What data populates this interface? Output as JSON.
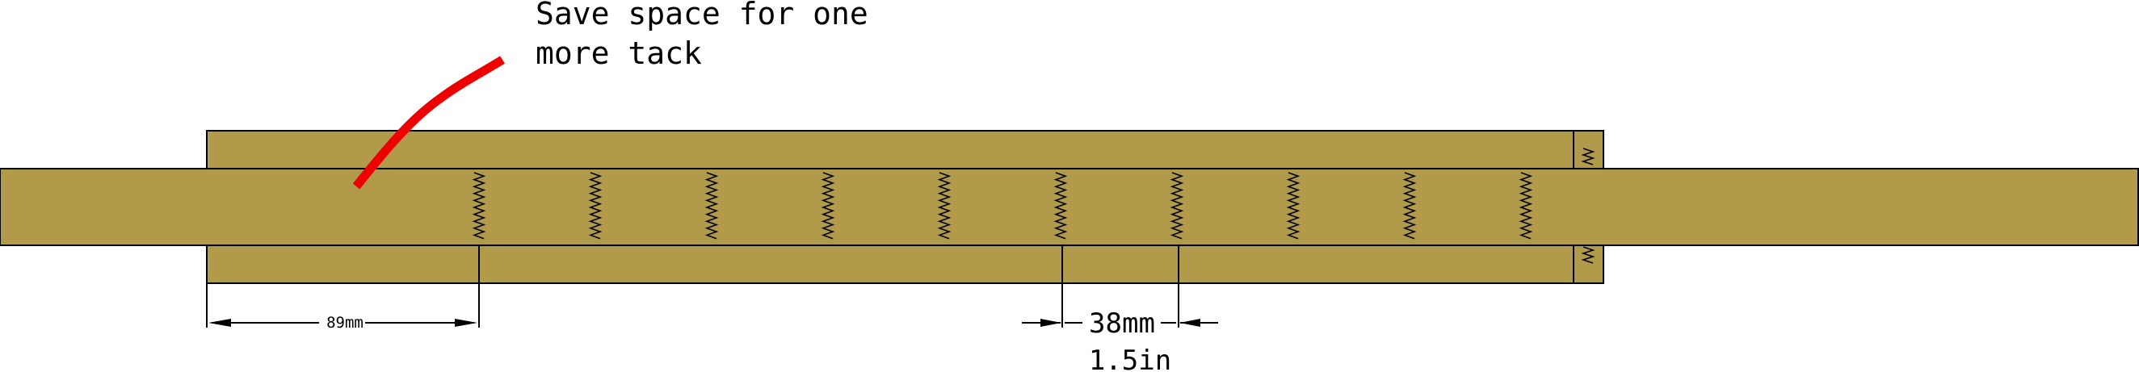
{
  "annotation": {
    "line1": "Save space for one",
    "line2": "more tack"
  },
  "dimensions": {
    "left_label": "89mm",
    "spacing_label_mm": "38mm",
    "spacing_label_in": "1.5in"
  },
  "tack_count": 10,
  "colors": {
    "strap_fill": "#b19a4a",
    "outline": "#000000",
    "callout": "#ee0000"
  }
}
